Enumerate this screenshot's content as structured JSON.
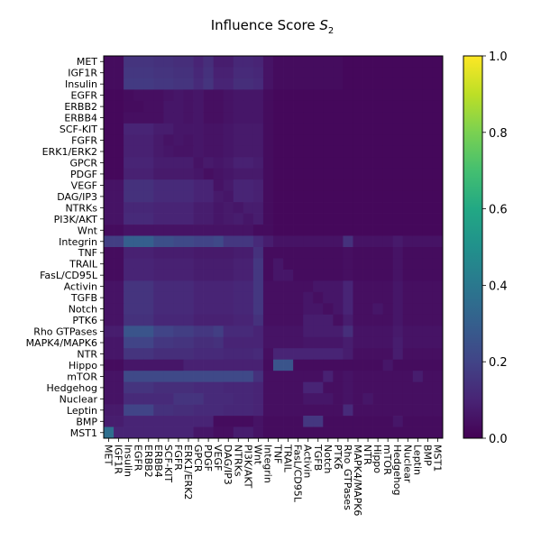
{
  "chart_data": {
    "type": "heatmap",
    "title": "Influence Score S₂",
    "title_main": "Influence Score ",
    "title_symbol": "S",
    "title_subscript": "2",
    "colormap": "viridis",
    "vmin": 0.0,
    "vmax": 1.0,
    "colorbar_ticks": [
      "0.0",
      "0.2",
      "0.4",
      "0.6",
      "0.8",
      "1.0"
    ],
    "labels": [
      "MET",
      "IGF1R",
      "Insulin",
      "EGFR",
      "ERBB2",
      "ERBB4",
      "SCF-KIT",
      "FGFR",
      "ERK1/ERK2",
      "GPCR",
      "PDGF",
      "VEGF",
      "DAG/IP3",
      "NTRKs",
      "PI3K/AKT",
      "Wnt",
      "Integrin",
      "TNF",
      "TRAIL",
      "FasL/CD95L",
      "Activin",
      "TGFB",
      "Notch",
      "PTK6",
      "Rho GTPases",
      "MAPK4/MAPK6",
      "NTR",
      "Hippo",
      "mTOR",
      "Hedgehog",
      "Nuclear",
      "Leptin",
      "BMP",
      "MST1"
    ],
    "x_labels": [
      "MET",
      "IGF1R",
      "Insulin",
      "EGFR",
      "ERBB2",
      "ERBB4",
      "SCF-KIT",
      "FGFR",
      "ERK1/ERK2",
      "GPCR",
      "PDGF",
      "VEGF",
      "DAG/IP3",
      "NTRKs",
      "PI3K/AKT",
      "Wnt",
      "Integrin",
      "TNF",
      "TRAIL",
      "FasL/CD95L",
      "Activin",
      "TGFB",
      "Notch",
      "PTK6",
      "Rho_GTPases",
      "MAPK4/MAPK6",
      "NTR",
      "Hippo",
      "mTOR",
      "Hedgehog",
      "Nuclear",
      "Leptin",
      "BMP",
      "MST1"
    ],
    "matrix": [
      [
        0.03,
        0.03,
        0.15,
        0.15,
        0.15,
        0.14,
        0.14,
        0.13,
        0.13,
        0.1,
        0.13,
        0.08,
        0.08,
        0.11,
        0.11,
        0.1,
        0.05,
        0.03,
        0.03,
        0.03,
        0.03,
        0.03,
        0.03,
        0.03,
        0.02,
        0.02,
        0.02,
        0.02,
        0.02,
        0.02,
        0.02,
        0.02,
        0.02,
        0.02
      ],
      [
        0.03,
        0.03,
        0.16,
        0.16,
        0.16,
        0.15,
        0.15,
        0.14,
        0.14,
        0.11,
        0.14,
        0.09,
        0.09,
        0.12,
        0.12,
        0.11,
        0.05,
        0.03,
        0.03,
        0.03,
        0.03,
        0.03,
        0.03,
        0.03,
        0.02,
        0.02,
        0.02,
        0.02,
        0.02,
        0.02,
        0.02,
        0.02,
        0.02,
        0.02
      ],
      [
        0.03,
        0.03,
        0.17,
        0.17,
        0.17,
        0.16,
        0.16,
        0.15,
        0.15,
        0.12,
        0.15,
        0.1,
        0.1,
        0.13,
        0.13,
        0.12,
        0.05,
        0.03,
        0.03,
        0.03,
        0.03,
        0.03,
        0.03,
        0.03,
        0.02,
        0.02,
        0.02,
        0.02,
        0.02,
        0.02,
        0.02,
        0.02,
        0.02,
        0.02
      ],
      [
        0.02,
        0.02,
        0.03,
        0.04,
        0.04,
        0.04,
        0.05,
        0.06,
        0.05,
        0.06,
        0.04,
        0.04,
        0.05,
        0.06,
        0.06,
        0.06,
        0.03,
        0.02,
        0.02,
        0.02,
        0.02,
        0.02,
        0.02,
        0.02,
        0.02,
        0.02,
        0.02,
        0.02,
        0.02,
        0.02,
        0.02,
        0.02,
        0.02,
        0.02
      ],
      [
        0.02,
        0.02,
        0.03,
        0.03,
        0.04,
        0.04,
        0.06,
        0.06,
        0.05,
        0.06,
        0.04,
        0.04,
        0.05,
        0.06,
        0.06,
        0.06,
        0.03,
        0.02,
        0.02,
        0.02,
        0.02,
        0.02,
        0.02,
        0.02,
        0.02,
        0.02,
        0.02,
        0.02,
        0.02,
        0.02,
        0.02,
        0.02,
        0.02,
        0.02
      ],
      [
        0.02,
        0.02,
        0.04,
        0.04,
        0.04,
        0.04,
        0.06,
        0.06,
        0.05,
        0.06,
        0.04,
        0.04,
        0.05,
        0.06,
        0.06,
        0.06,
        0.03,
        0.02,
        0.02,
        0.02,
        0.02,
        0.02,
        0.02,
        0.02,
        0.02,
        0.02,
        0.02,
        0.02,
        0.02,
        0.02,
        0.02,
        0.02,
        0.02,
        0.02
      ],
      [
        0.02,
        0.02,
        0.1,
        0.1,
        0.1,
        0.08,
        0.08,
        0.06,
        0.06,
        0.06,
        0.05,
        0.05,
        0.06,
        0.07,
        0.07,
        0.07,
        0.03,
        0.02,
        0.02,
        0.02,
        0.02,
        0.02,
        0.02,
        0.02,
        0.02,
        0.02,
        0.02,
        0.02,
        0.02,
        0.02,
        0.02,
        0.02,
        0.02,
        0.02
      ],
      [
        0.02,
        0.02,
        0.09,
        0.09,
        0.09,
        0.07,
        0.05,
        0.06,
        0.05,
        0.06,
        0.05,
        0.05,
        0.06,
        0.07,
        0.07,
        0.07,
        0.03,
        0.02,
        0.02,
        0.02,
        0.02,
        0.02,
        0.02,
        0.02,
        0.02,
        0.02,
        0.02,
        0.02,
        0.02,
        0.02,
        0.02,
        0.02,
        0.02,
        0.02
      ],
      [
        0.02,
        0.02,
        0.09,
        0.09,
        0.09,
        0.07,
        0.06,
        0.05,
        0.05,
        0.06,
        0.05,
        0.05,
        0.06,
        0.07,
        0.07,
        0.07,
        0.03,
        0.02,
        0.02,
        0.02,
        0.02,
        0.02,
        0.02,
        0.02,
        0.02,
        0.02,
        0.02,
        0.02,
        0.02,
        0.02,
        0.02,
        0.02,
        0.02,
        0.02
      ],
      [
        0.02,
        0.02,
        0.1,
        0.1,
        0.1,
        0.08,
        0.08,
        0.08,
        0.08,
        0.05,
        0.07,
        0.06,
        0.07,
        0.09,
        0.09,
        0.08,
        0.03,
        0.02,
        0.02,
        0.02,
        0.02,
        0.02,
        0.02,
        0.02,
        0.02,
        0.02,
        0.02,
        0.02,
        0.02,
        0.02,
        0.02,
        0.02,
        0.02,
        0.02
      ],
      [
        0.02,
        0.02,
        0.09,
        0.09,
        0.09,
        0.07,
        0.07,
        0.07,
        0.07,
        0.06,
        0.04,
        0.05,
        0.06,
        0.07,
        0.07,
        0.07,
        0.03,
        0.02,
        0.02,
        0.02,
        0.02,
        0.02,
        0.02,
        0.02,
        0.02,
        0.02,
        0.02,
        0.02,
        0.02,
        0.02,
        0.02,
        0.02,
        0.02,
        0.02
      ],
      [
        0.05,
        0.05,
        0.14,
        0.14,
        0.14,
        0.12,
        0.12,
        0.12,
        0.12,
        0.1,
        0.1,
        0.05,
        0.07,
        0.1,
        0.1,
        0.09,
        0.03,
        0.02,
        0.02,
        0.02,
        0.02,
        0.02,
        0.02,
        0.02,
        0.02,
        0.02,
        0.02,
        0.02,
        0.02,
        0.02,
        0.02,
        0.02,
        0.02,
        0.02
      ],
      [
        0.05,
        0.05,
        0.14,
        0.14,
        0.14,
        0.12,
        0.12,
        0.12,
        0.12,
        0.1,
        0.1,
        0.07,
        0.06,
        0.1,
        0.1,
        0.09,
        0.03,
        0.02,
        0.02,
        0.02,
        0.02,
        0.02,
        0.02,
        0.02,
        0.02,
        0.02,
        0.02,
        0.02,
        0.02,
        0.02,
        0.02,
        0.02,
        0.02,
        0.02
      ],
      [
        0.05,
        0.05,
        0.11,
        0.11,
        0.11,
        0.1,
        0.1,
        0.1,
        0.1,
        0.08,
        0.08,
        0.06,
        0.07,
        0.06,
        0.08,
        0.08,
        0.03,
        0.02,
        0.02,
        0.02,
        0.02,
        0.02,
        0.02,
        0.02,
        0.02,
        0.02,
        0.02,
        0.02,
        0.02,
        0.02,
        0.02,
        0.02,
        0.02,
        0.02
      ],
      [
        0.05,
        0.05,
        0.12,
        0.12,
        0.12,
        0.1,
        0.1,
        0.1,
        0.1,
        0.08,
        0.08,
        0.06,
        0.07,
        0.08,
        0.06,
        0.08,
        0.03,
        0.02,
        0.02,
        0.02,
        0.02,
        0.02,
        0.02,
        0.02,
        0.02,
        0.02,
        0.02,
        0.02,
        0.02,
        0.02,
        0.02,
        0.02,
        0.02,
        0.02
      ],
      [
        0.03,
        0.03,
        0.05,
        0.05,
        0.05,
        0.05,
        0.05,
        0.05,
        0.05,
        0.05,
        0.05,
        0.05,
        0.05,
        0.05,
        0.05,
        0.03,
        0.03,
        0.02,
        0.02,
        0.02,
        0.02,
        0.02,
        0.02,
        0.02,
        0.02,
        0.02,
        0.02,
        0.02,
        0.02,
        0.02,
        0.02,
        0.02,
        0.02,
        0.02
      ],
      [
        0.18,
        0.18,
        0.3,
        0.3,
        0.3,
        0.24,
        0.24,
        0.22,
        0.22,
        0.2,
        0.2,
        0.22,
        0.16,
        0.16,
        0.16,
        0.12,
        0.08,
        0.05,
        0.05,
        0.05,
        0.05,
        0.05,
        0.05,
        0.05,
        0.14,
        0.05,
        0.05,
        0.05,
        0.05,
        0.07,
        0.05,
        0.05,
        0.05,
        0.05
      ],
      [
        0.03,
        0.03,
        0.09,
        0.09,
        0.09,
        0.08,
        0.08,
        0.08,
        0.08,
        0.07,
        0.07,
        0.07,
        0.07,
        0.08,
        0.08,
        0.14,
        0.03,
        0.03,
        0.03,
        0.03,
        0.03,
        0.03,
        0.03,
        0.03,
        0.04,
        0.03,
        0.03,
        0.03,
        0.03,
        0.05,
        0.03,
        0.03,
        0.03,
        0.03
      ],
      [
        0.03,
        0.03,
        0.1,
        0.1,
        0.1,
        0.09,
        0.09,
        0.09,
        0.09,
        0.08,
        0.08,
        0.08,
        0.08,
        0.09,
        0.09,
        0.16,
        0.03,
        0.06,
        0.03,
        0.03,
        0.03,
        0.03,
        0.03,
        0.03,
        0.04,
        0.03,
        0.03,
        0.03,
        0.03,
        0.05,
        0.03,
        0.03,
        0.03,
        0.03
      ],
      [
        0.03,
        0.03,
        0.1,
        0.1,
        0.1,
        0.09,
        0.09,
        0.09,
        0.09,
        0.08,
        0.08,
        0.08,
        0.08,
        0.09,
        0.09,
        0.16,
        0.03,
        0.06,
        0.06,
        0.03,
        0.03,
        0.03,
        0.03,
        0.03,
        0.04,
        0.03,
        0.03,
        0.03,
        0.03,
        0.05,
        0.03,
        0.03,
        0.03,
        0.03
      ],
      [
        0.05,
        0.05,
        0.15,
        0.15,
        0.15,
        0.12,
        0.12,
        0.12,
        0.12,
        0.1,
        0.1,
        0.1,
        0.1,
        0.11,
        0.11,
        0.16,
        0.04,
        0.04,
        0.04,
        0.04,
        0.04,
        0.06,
        0.06,
        0.06,
        0.1,
        0.04,
        0.04,
        0.04,
        0.04,
        0.06,
        0.04,
        0.04,
        0.04,
        0.04
      ],
      [
        0.05,
        0.05,
        0.15,
        0.15,
        0.15,
        0.12,
        0.12,
        0.12,
        0.12,
        0.1,
        0.1,
        0.1,
        0.1,
        0.11,
        0.11,
        0.16,
        0.04,
        0.04,
        0.04,
        0.04,
        0.06,
        0.04,
        0.06,
        0.06,
        0.1,
        0.04,
        0.04,
        0.04,
        0.04,
        0.06,
        0.04,
        0.04,
        0.04,
        0.04
      ],
      [
        0.05,
        0.05,
        0.15,
        0.15,
        0.15,
        0.12,
        0.12,
        0.12,
        0.12,
        0.1,
        0.1,
        0.1,
        0.1,
        0.11,
        0.11,
        0.16,
        0.04,
        0.04,
        0.04,
        0.04,
        0.06,
        0.06,
        0.04,
        0.06,
        0.1,
        0.04,
        0.04,
        0.06,
        0.04,
        0.06,
        0.04,
        0.04,
        0.04,
        0.04
      ],
      [
        0.05,
        0.05,
        0.14,
        0.14,
        0.14,
        0.11,
        0.11,
        0.11,
        0.11,
        0.09,
        0.09,
        0.09,
        0.09,
        0.1,
        0.1,
        0.14,
        0.04,
        0.04,
        0.04,
        0.04,
        0.08,
        0.08,
        0.08,
        0.04,
        0.08,
        0.04,
        0.04,
        0.04,
        0.04,
        0.06,
        0.04,
        0.04,
        0.04,
        0.04
      ],
      [
        0.08,
        0.08,
        0.26,
        0.26,
        0.26,
        0.2,
        0.2,
        0.18,
        0.18,
        0.16,
        0.16,
        0.18,
        0.12,
        0.12,
        0.12,
        0.1,
        0.05,
        0.05,
        0.05,
        0.05,
        0.08,
        0.08,
        0.08,
        0.08,
        0.13,
        0.05,
        0.05,
        0.05,
        0.05,
        0.07,
        0.05,
        0.05,
        0.05,
        0.05
      ],
      [
        0.06,
        0.06,
        0.2,
        0.2,
        0.2,
        0.16,
        0.16,
        0.15,
        0.15,
        0.13,
        0.13,
        0.14,
        0.1,
        0.1,
        0.1,
        0.1,
        0.05,
        0.05,
        0.05,
        0.05,
        0.06,
        0.06,
        0.06,
        0.06,
        0.08,
        0.05,
        0.05,
        0.05,
        0.05,
        0.08,
        0.05,
        0.05,
        0.05,
        0.05
      ],
      [
        0.06,
        0.06,
        0.15,
        0.15,
        0.15,
        0.13,
        0.13,
        0.13,
        0.13,
        0.12,
        0.12,
        0.12,
        0.11,
        0.11,
        0.11,
        0.12,
        0.04,
        0.1,
        0.1,
        0.1,
        0.1,
        0.1,
        0.1,
        0.1,
        0.08,
        0.04,
        0.04,
        0.04,
        0.04,
        0.08,
        0.04,
        0.04,
        0.04,
        0.04
      ],
      [
        0.03,
        0.03,
        0.06,
        0.06,
        0.06,
        0.06,
        0.06,
        0.06,
        0.09,
        0.09,
        0.09,
        0.09,
        0.09,
        0.09,
        0.09,
        0.09,
        0.03,
        0.26,
        0.26,
        0.03,
        0.03,
        0.03,
        0.03,
        0.03,
        0.03,
        0.03,
        0.03,
        0.03,
        0.06,
        0.03,
        0.03,
        0.03,
        0.03,
        0.03
      ],
      [
        0.05,
        0.05,
        0.22,
        0.22,
        0.22,
        0.22,
        0.22,
        0.22,
        0.22,
        0.22,
        0.22,
        0.22,
        0.22,
        0.22,
        0.22,
        0.14,
        0.04,
        0.04,
        0.04,
        0.04,
        0.04,
        0.04,
        0.09,
        0.04,
        0.05,
        0.04,
        0.04,
        0.04,
        0.04,
        0.04,
        0.04,
        0.08,
        0.04,
        0.04
      ],
      [
        0.05,
        0.05,
        0.15,
        0.15,
        0.15,
        0.13,
        0.13,
        0.13,
        0.13,
        0.12,
        0.12,
        0.12,
        0.11,
        0.11,
        0.11,
        0.1,
        0.04,
        0.04,
        0.04,
        0.04,
        0.1,
        0.1,
        0.04,
        0.04,
        0.05,
        0.04,
        0.04,
        0.04,
        0.04,
        0.04,
        0.04,
        0.04,
        0.04,
        0.04
      ],
      [
        0.05,
        0.05,
        0.12,
        0.12,
        0.12,
        0.12,
        0.12,
        0.15,
        0.15,
        0.15,
        0.12,
        0.12,
        0.12,
        0.11,
        0.11,
        0.1,
        0.04,
        0.04,
        0.04,
        0.04,
        0.06,
        0.06,
        0.06,
        0.04,
        0.05,
        0.04,
        0.06,
        0.04,
        0.04,
        0.04,
        0.04,
        0.04,
        0.04,
        0.04
      ],
      [
        0.07,
        0.07,
        0.2,
        0.2,
        0.2,
        0.14,
        0.14,
        0.13,
        0.13,
        0.12,
        0.12,
        0.12,
        0.11,
        0.11,
        0.11,
        0.1,
        0.04,
        0.04,
        0.04,
        0.04,
        0.04,
        0.04,
        0.04,
        0.04,
        0.12,
        0.04,
        0.04,
        0.04,
        0.04,
        0.04,
        0.04,
        0.04,
        0.04,
        0.04
      ],
      [
        0.08,
        0.08,
        0.1,
        0.1,
        0.1,
        0.1,
        0.1,
        0.1,
        0.1,
        0.1,
        0.1,
        0.03,
        0.03,
        0.03,
        0.03,
        0.05,
        0.03,
        0.03,
        0.03,
        0.03,
        0.16,
        0.16,
        0.03,
        0.03,
        0.03,
        0.03,
        0.03,
        0.03,
        0.03,
        0.06,
        0.03,
        0.03,
        0.03,
        0.03
      ],
      [
        0.36,
        0.1,
        0.1,
        0.1,
        0.1,
        0.1,
        0.1,
        0.1,
        0.1,
        0.06,
        0.06,
        0.04,
        0.04,
        0.08,
        0.08,
        0.05,
        0.03,
        0.03,
        0.03,
        0.03,
        0.03,
        0.03,
        0.03,
        0.03,
        0.03,
        0.03,
        0.03,
        0.03,
        0.03,
        0.03,
        0.03,
        0.03,
        0.03,
        0.03
      ]
    ]
  }
}
